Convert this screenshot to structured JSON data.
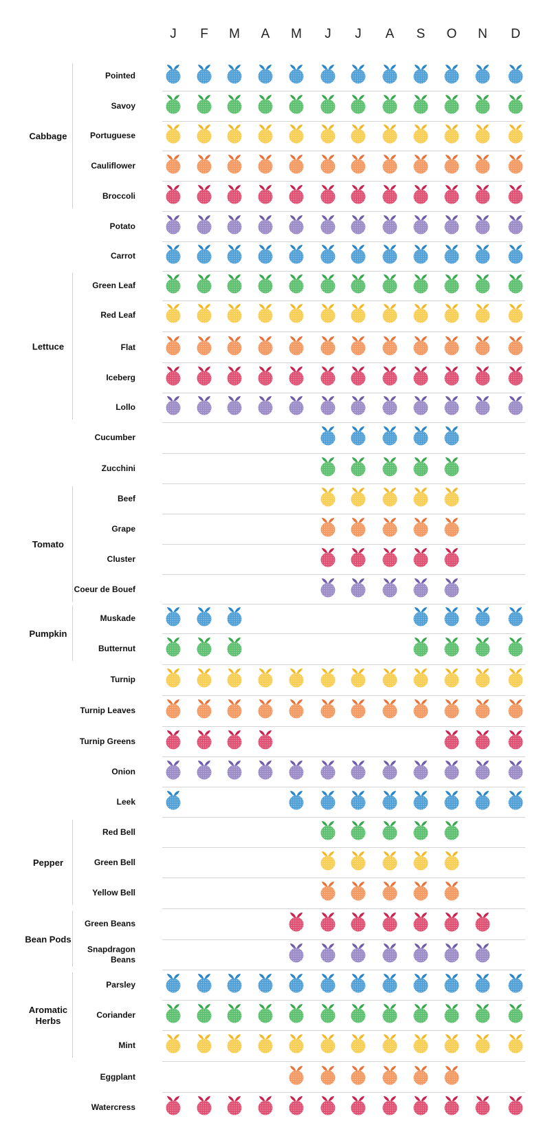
{
  "palette": {
    "blue": "#4f9fd6",
    "blue_leaf": "#2a86c8",
    "green": "#5cbf6e",
    "green_leaf": "#3aa84f",
    "yellow": "#f7cd52",
    "yellow_leaf": "#f2b827",
    "orange": "#f39860",
    "orange_leaf": "#e8733a",
    "red": "#df4f72",
    "red_leaf": "#c8244f",
    "purple": "#9a8ac6",
    "purple_leaf": "#6f5ba8"
  },
  "icon": "fruit-icon",
  "chart_data": {
    "type": "table",
    "title": "",
    "months": [
      "J",
      "F",
      "M",
      "A",
      "M",
      "J",
      "J",
      "A",
      "S",
      "O",
      "N",
      "D"
    ],
    "groups": [
      {
        "label": "Cabbage",
        "lines": [
          "Cabbage"
        ],
        "rows": [
          0,
          4
        ]
      },
      {
        "label": "Lettuce",
        "lines": [
          "Lettuce"
        ],
        "rows": [
          7,
          11
        ]
      },
      {
        "label": "Tomato",
        "lines": [
          "Tomato"
        ],
        "rows": [
          14,
          17
        ]
      },
      {
        "label": "Pumpkin",
        "lines": [
          "Pumpkin"
        ],
        "rows": [
          18,
          19
        ]
      },
      {
        "label": "Pepper",
        "lines": [
          "Pepper"
        ],
        "rows": [
          25,
          27
        ]
      },
      {
        "label": "Bean Pods",
        "lines": [
          "Bean Pods"
        ],
        "rows": [
          28,
          29
        ]
      },
      {
        "label": "Aromatic Herbs",
        "lines": [
          "Aromatic",
          "Herbs"
        ],
        "rows": [
          30,
          32
        ]
      }
    ],
    "rows": [
      {
        "label": "Pointed",
        "lines": [
          "Pointed"
        ],
        "color": "blue",
        "months": [
          1,
          1,
          1,
          1,
          1,
          1,
          1,
          1,
          1,
          1,
          1,
          1
        ]
      },
      {
        "label": "Savoy",
        "lines": [
          "Savoy"
        ],
        "color": "green",
        "months": [
          1,
          1,
          1,
          1,
          1,
          1,
          1,
          1,
          1,
          1,
          1,
          1
        ]
      },
      {
        "label": "Portuguese",
        "lines": [
          "Portuguese"
        ],
        "color": "yellow",
        "months": [
          1,
          1,
          1,
          1,
          1,
          1,
          1,
          1,
          1,
          1,
          1,
          1
        ]
      },
      {
        "label": "Cauliflower",
        "lines": [
          "Cauliflower"
        ],
        "color": "orange",
        "months": [
          1,
          1,
          1,
          1,
          1,
          1,
          1,
          1,
          1,
          1,
          1,
          1
        ]
      },
      {
        "label": "Broccoli",
        "lines": [
          "Broccoli"
        ],
        "color": "red",
        "months": [
          1,
          1,
          1,
          1,
          1,
          1,
          1,
          1,
          1,
          1,
          1,
          1
        ]
      },
      {
        "label": "Potato",
        "lines": [
          "Potato"
        ],
        "color": "purple",
        "months": [
          1,
          1,
          1,
          1,
          1,
          1,
          1,
          1,
          1,
          1,
          1,
          1
        ]
      },
      {
        "label": "Carrot",
        "lines": [
          "Carrot"
        ],
        "color": "blue",
        "months": [
          1,
          1,
          1,
          1,
          1,
          1,
          1,
          1,
          1,
          1,
          1,
          1
        ]
      },
      {
        "label": "Green Leaf",
        "lines": [
          "Green Leaf"
        ],
        "color": "green",
        "months": [
          1,
          1,
          1,
          1,
          1,
          1,
          1,
          1,
          1,
          1,
          1,
          1
        ]
      },
      {
        "label": "Red Leaf",
        "lines": [
          "Red Leaf"
        ],
        "color": "yellow",
        "months": [
          1,
          1,
          1,
          1,
          1,
          1,
          1,
          1,
          1,
          1,
          1,
          1
        ]
      },
      {
        "label": "Flat",
        "lines": [
          "Flat"
        ],
        "color": "orange",
        "months": [
          1,
          1,
          1,
          1,
          1,
          1,
          1,
          1,
          1,
          1,
          1,
          1
        ]
      },
      {
        "label": "Iceberg",
        "lines": [
          "Iceberg"
        ],
        "color": "red",
        "months": [
          1,
          1,
          1,
          1,
          1,
          1,
          1,
          1,
          1,
          1,
          1,
          1
        ]
      },
      {
        "label": "Lollo",
        "lines": [
          "Lollo"
        ],
        "color": "purple",
        "months": [
          1,
          1,
          1,
          1,
          1,
          1,
          1,
          1,
          1,
          1,
          1,
          1
        ]
      },
      {
        "label": "Cucumber",
        "lines": [
          "Cucumber"
        ],
        "color": "blue",
        "months": [
          0,
          0,
          0,
          0,
          0,
          1,
          1,
          1,
          1,
          1,
          0,
          0
        ]
      },
      {
        "label": "Zucchini",
        "lines": [
          "Zucchini"
        ],
        "color": "green",
        "months": [
          0,
          0,
          0,
          0,
          0,
          1,
          1,
          1,
          1,
          1,
          0,
          0
        ]
      },
      {
        "label": "Beef",
        "lines": [
          "Beef"
        ],
        "color": "yellow",
        "months": [
          0,
          0,
          0,
          0,
          0,
          1,
          1,
          1,
          1,
          1,
          0,
          0
        ]
      },
      {
        "label": "Grape",
        "lines": [
          "Grape"
        ],
        "color": "orange",
        "months": [
          0,
          0,
          0,
          0,
          0,
          1,
          1,
          1,
          1,
          1,
          0,
          0
        ]
      },
      {
        "label": "Cluster",
        "lines": [
          "Cluster"
        ],
        "color": "red",
        "months": [
          0,
          0,
          0,
          0,
          0,
          1,
          1,
          1,
          1,
          1,
          0,
          0
        ]
      },
      {
        "label": "Coeur de Bouef",
        "lines": [
          "Coeur de Bouef"
        ],
        "color": "purple",
        "months": [
          0,
          0,
          0,
          0,
          0,
          1,
          1,
          1,
          1,
          1,
          0,
          0
        ]
      },
      {
        "label": "Muskade",
        "lines": [
          "Muskade"
        ],
        "color": "blue",
        "months": [
          1,
          1,
          1,
          0,
          0,
          0,
          0,
          0,
          1,
          1,
          1,
          1
        ]
      },
      {
        "label": "Butternut",
        "lines": [
          "Butternut"
        ],
        "color": "green",
        "months": [
          1,
          1,
          1,
          0,
          0,
          0,
          0,
          0,
          1,
          1,
          1,
          1
        ]
      },
      {
        "label": "Turnip",
        "lines": [
          "Turnip"
        ],
        "color": "yellow",
        "months": [
          1,
          1,
          1,
          1,
          1,
          1,
          1,
          1,
          1,
          1,
          1,
          1
        ]
      },
      {
        "label": "Turnip Leaves",
        "lines": [
          "Turnip Leaves"
        ],
        "color": "orange",
        "months": [
          1,
          1,
          1,
          1,
          1,
          1,
          1,
          1,
          1,
          1,
          1,
          1
        ]
      },
      {
        "label": "Turnip Greens",
        "lines": [
          "Turnip Greens"
        ],
        "color": "red",
        "months": [
          1,
          1,
          1,
          1,
          0,
          0,
          0,
          0,
          0,
          1,
          1,
          1
        ]
      },
      {
        "label": "Onion",
        "lines": [
          "Onion"
        ],
        "color": "purple",
        "months": [
          1,
          1,
          1,
          1,
          1,
          1,
          1,
          1,
          1,
          1,
          1,
          1
        ]
      },
      {
        "label": "Leek",
        "lines": [
          "Leek"
        ],
        "color": "blue",
        "months": [
          1,
          0,
          0,
          0,
          1,
          1,
          1,
          1,
          1,
          1,
          1,
          1
        ]
      },
      {
        "label": "Red Bell",
        "lines": [
          "Red Bell"
        ],
        "color": "green",
        "months": [
          0,
          0,
          0,
          0,
          0,
          1,
          1,
          1,
          1,
          1,
          0,
          0
        ]
      },
      {
        "label": "Green Bell",
        "lines": [
          "Green Bell"
        ],
        "color": "yellow",
        "months": [
          0,
          0,
          0,
          0,
          0,
          1,
          1,
          1,
          1,
          1,
          0,
          0
        ]
      },
      {
        "label": "Yellow Bell",
        "lines": [
          "Yellow Bell"
        ],
        "color": "orange",
        "months": [
          0,
          0,
          0,
          0,
          0,
          1,
          1,
          1,
          1,
          1,
          0,
          0
        ]
      },
      {
        "label": "Green Beans",
        "lines": [
          "Green Beans"
        ],
        "color": "red",
        "months": [
          0,
          0,
          0,
          0,
          1,
          1,
          1,
          1,
          1,
          1,
          1,
          0
        ]
      },
      {
        "label": "Snapdragon Beans",
        "lines": [
          "Snapdragon",
          "Beans"
        ],
        "color": "purple",
        "months": [
          0,
          0,
          0,
          0,
          1,
          1,
          1,
          1,
          1,
          1,
          1,
          0
        ]
      },
      {
        "label": "Parsley",
        "lines": [
          "Parsley"
        ],
        "color": "blue",
        "months": [
          1,
          1,
          1,
          1,
          1,
          1,
          1,
          1,
          1,
          1,
          1,
          1
        ]
      },
      {
        "label": "Coriander",
        "lines": [
          "Coriander"
        ],
        "color": "green",
        "months": [
          1,
          1,
          1,
          1,
          1,
          1,
          1,
          1,
          1,
          1,
          1,
          1
        ]
      },
      {
        "label": "Mint",
        "lines": [
          "Mint"
        ],
        "color": "yellow",
        "months": [
          1,
          1,
          1,
          1,
          1,
          1,
          1,
          1,
          1,
          1,
          1,
          1
        ]
      },
      {
        "label": "Eggplant",
        "lines": [
          "Eggplant"
        ],
        "color": "orange",
        "months": [
          0,
          0,
          0,
          0,
          1,
          1,
          1,
          1,
          1,
          1,
          0,
          0
        ]
      },
      {
        "label": "Watercress",
        "lines": [
          "Watercress"
        ],
        "color": "red",
        "months": [
          1,
          1,
          1,
          1,
          1,
          1,
          1,
          1,
          1,
          1,
          1,
          1
        ]
      }
    ]
  }
}
